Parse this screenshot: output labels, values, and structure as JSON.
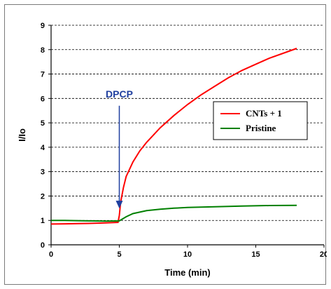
{
  "chart_data": {
    "type": "line",
    "xlabel": "Time (min)",
    "ylabel": "I/Io",
    "xlim": [
      0,
      20
    ],
    "ylim": [
      0,
      9
    ],
    "x_ticks": [
      "0",
      "5",
      "10",
      "15",
      "20"
    ],
    "y_ticks": [
      "0",
      "1",
      "2",
      "3",
      "4",
      "5",
      "6",
      "7",
      "8",
      "9"
    ],
    "grid": "horizontal-dashed",
    "legend_position": "right",
    "series": [
      {
        "name": "CNTs + 1",
        "color": "#ff0000",
        "x": [
          0,
          1,
          2,
          3,
          4,
          4.9,
          5.0,
          5.1,
          5.3,
          5.5,
          6,
          6.5,
          7,
          8,
          9,
          10,
          11,
          12,
          13,
          14,
          15,
          16,
          17,
          18
        ],
        "y": [
          0.85,
          0.86,
          0.87,
          0.88,
          0.9,
          0.92,
          1.2,
          1.75,
          2.35,
          2.8,
          3.4,
          3.85,
          4.2,
          4.8,
          5.3,
          5.75,
          6.15,
          6.5,
          6.85,
          7.15,
          7.4,
          7.65,
          7.85,
          8.05
        ]
      },
      {
        "name": "Pristine",
        "color": "#008000",
        "x": [
          0,
          1,
          2,
          3,
          4,
          5,
          5.5,
          6,
          7,
          8,
          9,
          10,
          12,
          14,
          16,
          18
        ],
        "y": [
          1.0,
          1.0,
          0.99,
          0.98,
          0.97,
          0.98,
          1.15,
          1.28,
          1.4,
          1.46,
          1.5,
          1.53,
          1.56,
          1.59,
          1.61,
          1.62
        ]
      }
    ],
    "annotation": {
      "text": "DPCP",
      "x": 5.0,
      "y_from": 5.7,
      "y_to": 1.55,
      "color": "#1f3f9f"
    }
  }
}
